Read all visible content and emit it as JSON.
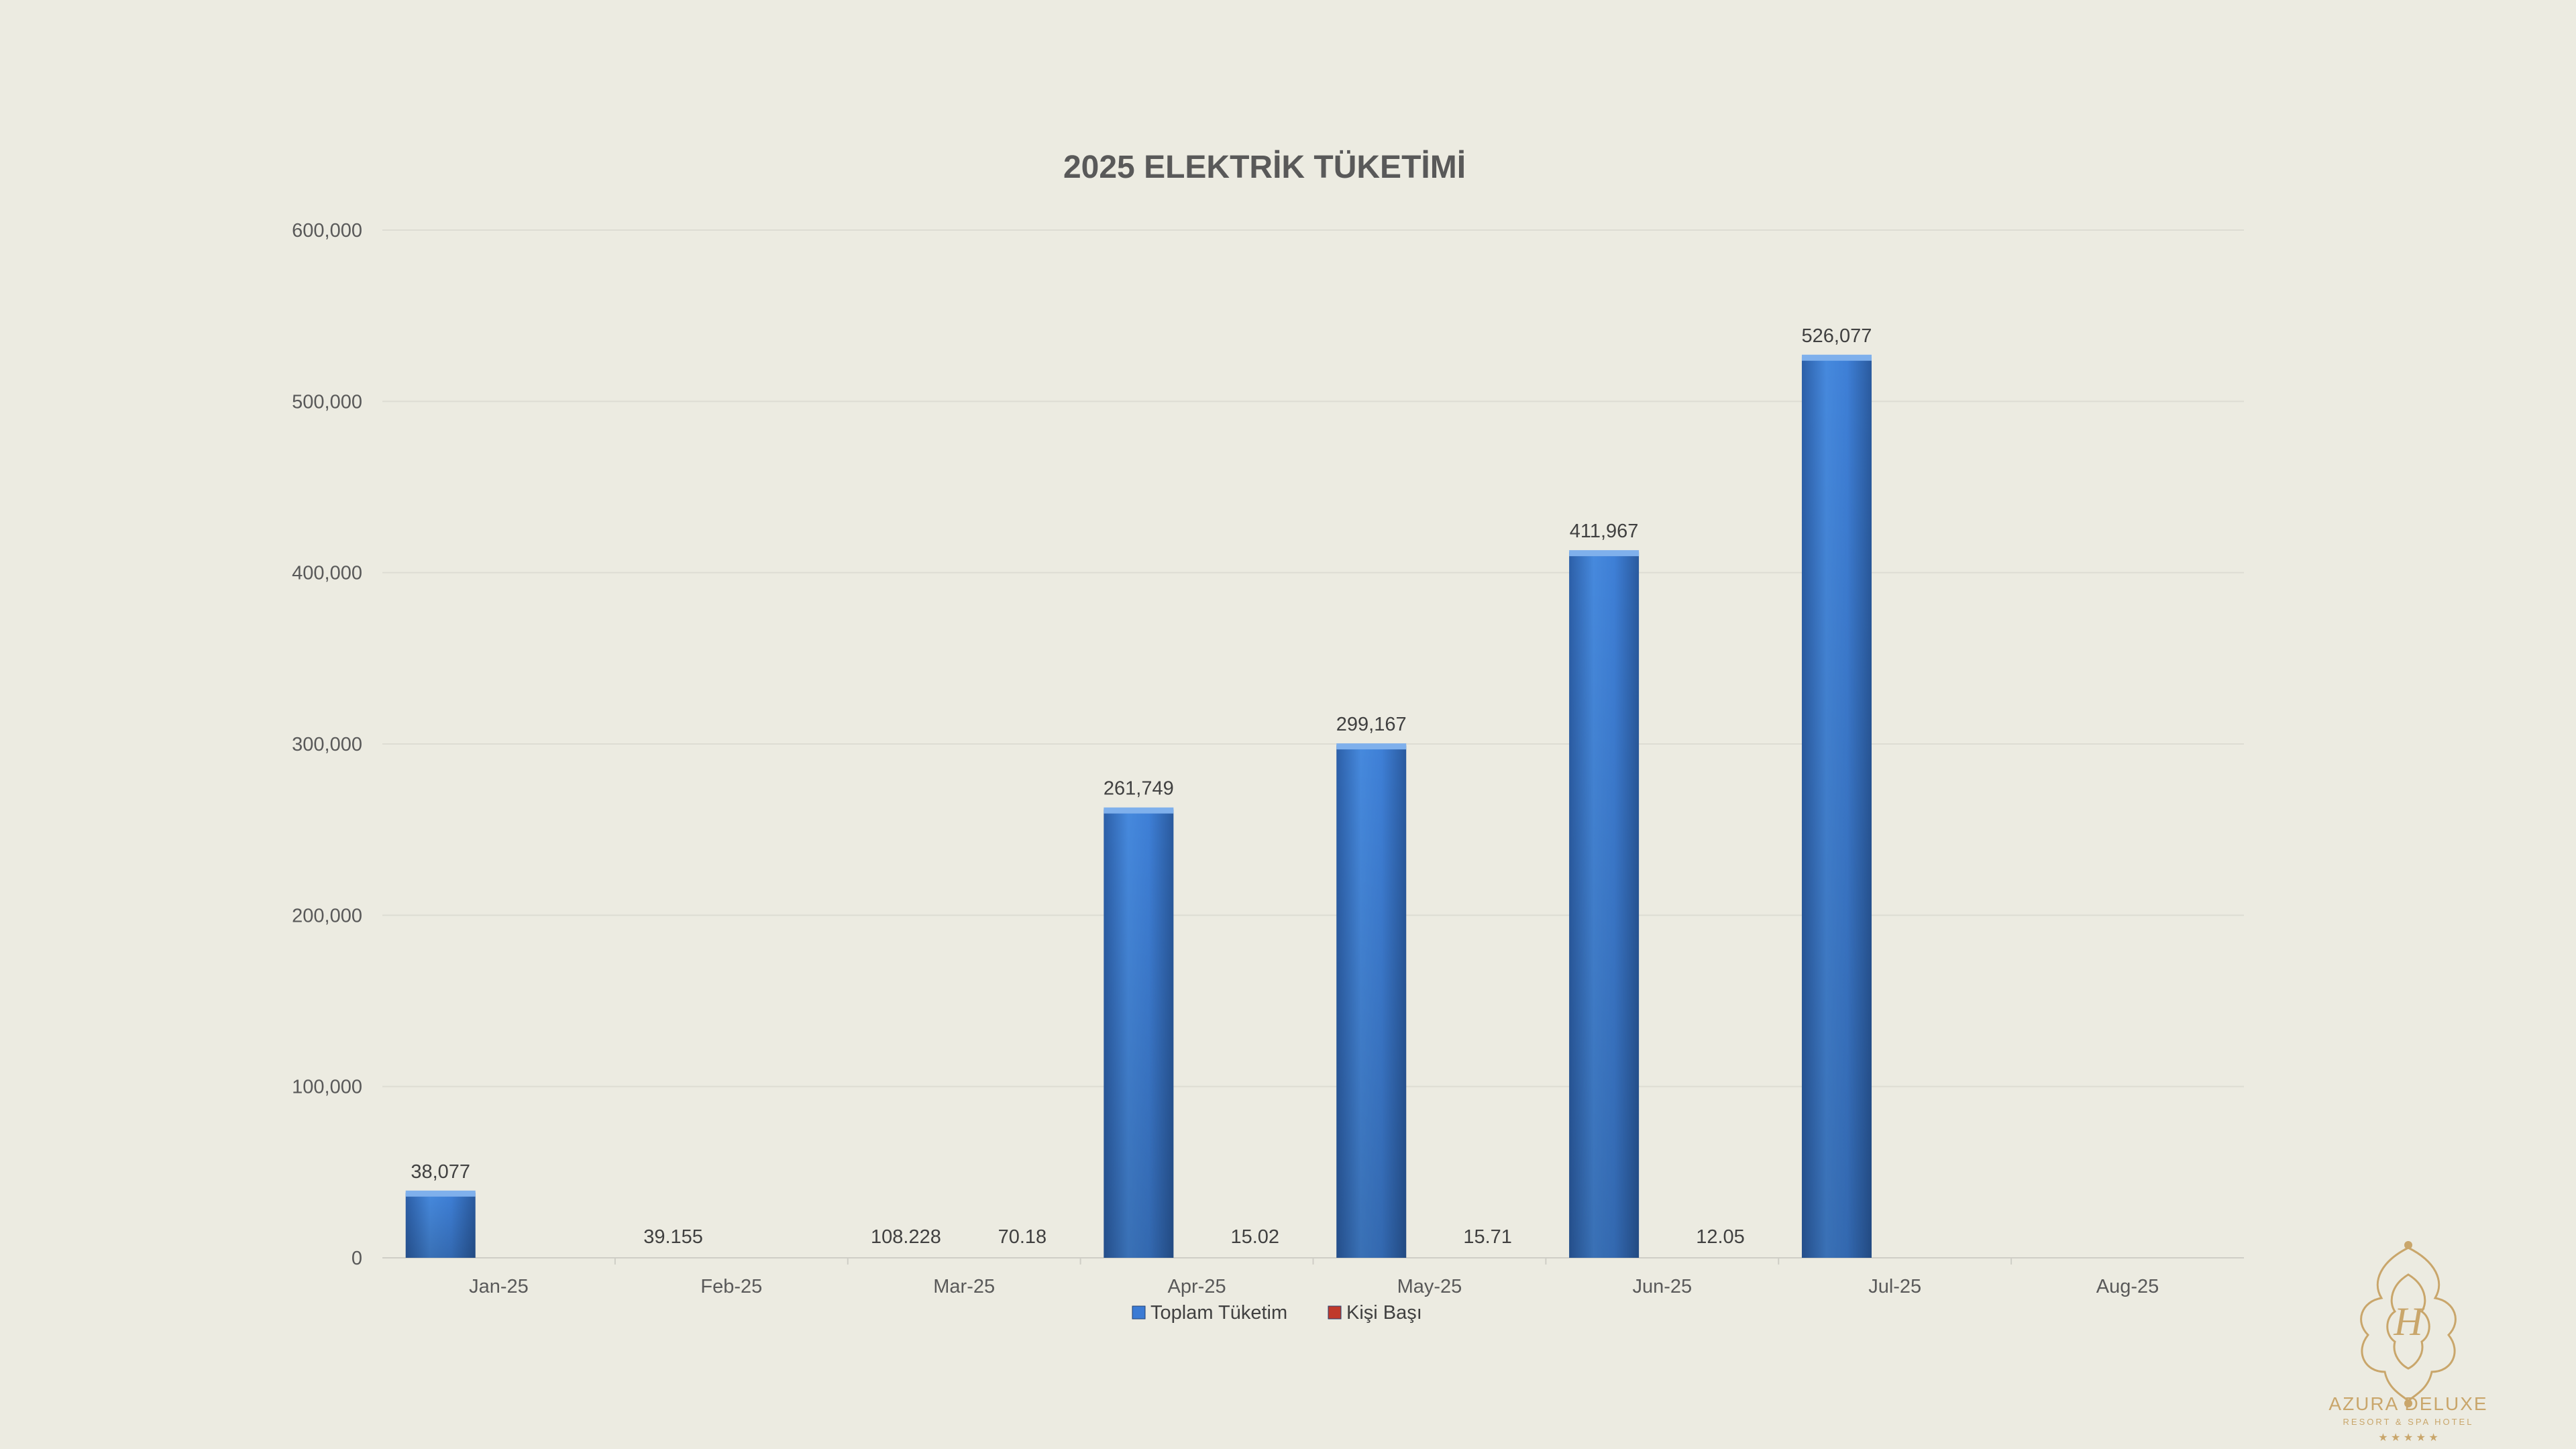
{
  "chart_data": {
    "type": "bar",
    "title": "2025 ELEKTRİK TÜKETİMİ",
    "categories": [
      "Jan-25",
      "Feb-25",
      "Mar-25",
      "Apr-25",
      "May-25",
      "Jun-25",
      "Jul-25",
      "Aug-25"
    ],
    "series": [
      {
        "name": "Toplam Tüketim",
        "values": [
          38077,
          39.155,
          108.228,
          261749,
          299167,
          411967,
          526077,
          null
        ],
        "labels": [
          "38,077",
          "39.155",
          "108.228",
          "261,749",
          "299,167",
          "411,967",
          "526,077",
          ""
        ],
        "color": "#3B7BD4"
      },
      {
        "name": "Kişi Başı",
        "values": [
          null,
          null,
          70.18,
          15.02,
          15.71,
          12.05,
          null,
          null
        ],
        "labels": [
          "",
          "",
          "70.18",
          "15.02",
          "15.71",
          "12.05",
          "",
          ""
        ],
        "color": "#C0392B"
      }
    ],
    "ylim": [
      0,
      600000
    ],
    "yticks": [
      0,
      100000,
      200000,
      300000,
      400000,
      500000,
      600000
    ],
    "ytick_labels": [
      "0",
      "100,000",
      "200,000",
      "300,000",
      "400,000",
      "500,000",
      "600,000"
    ],
    "grid": true,
    "legend_position": "bottom"
  },
  "logo": {
    "brand": "AZURA DELUXE",
    "tagline": "RESORT & SPA HOTEL",
    "stars": "★ ★ ★ ★ ★"
  }
}
